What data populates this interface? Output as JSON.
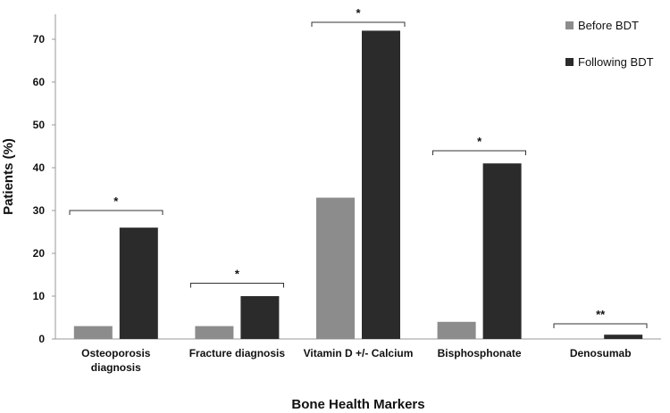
{
  "chart_data": {
    "type": "bar",
    "title": "",
    "xlabel": "Bone Health Markers",
    "ylabel": "Patients (%)",
    "ylim": [
      0,
      75
    ],
    "yticks": [
      0,
      10,
      20,
      30,
      40,
      50,
      60,
      70
    ],
    "grid": false,
    "legend_position": "top-right",
    "categories": [
      [
        "Osteoporosis",
        "diagnosis"
      ],
      [
        "Fracture diagnosis"
      ],
      [
        "Vitamin D +/- Calcium"
      ],
      [
        "Bisphosphonate"
      ],
      [
        "Denosumab"
      ]
    ],
    "series": [
      {
        "name": "Before BDT",
        "color": "#8c8c8c",
        "values": [
          3,
          3,
          33,
          4,
          0
        ]
      },
      {
        "name": "Following BDT",
        "color": "#2b2b2b",
        "values": [
          26,
          10,
          72,
          41,
          1
        ]
      }
    ],
    "annotations": [
      {
        "category_index": 0,
        "label": "*",
        "bracket_level": 30
      },
      {
        "category_index": 1,
        "label": "*",
        "bracket_level": 13
      },
      {
        "category_index": 2,
        "label": "*",
        "bracket_level": 74
      },
      {
        "category_index": 3,
        "label": "*",
        "bracket_level": 44
      },
      {
        "category_index": 4,
        "label": "**",
        "bracket_level": 3.5
      }
    ]
  }
}
